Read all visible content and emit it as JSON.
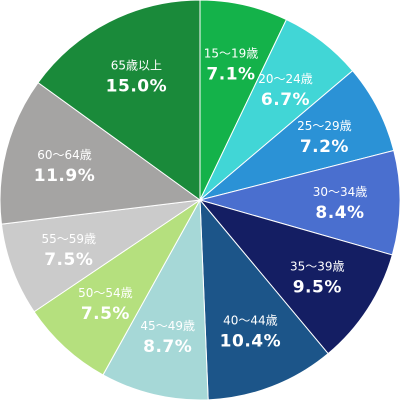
{
  "chart_data": {
    "type": "pie",
    "title": "",
    "start_angle_deg": 0,
    "direction": "clockwise",
    "categories": [
      "15〜19歳",
      "20〜24歳",
      "25〜29歳",
      "30〜34歳",
      "35〜39歳",
      "40〜44歳",
      "45〜49歳",
      "50〜54歳",
      "55〜59歳",
      "60〜64歳",
      "65歳以上"
    ],
    "values": [
      7.1,
      6.7,
      7.2,
      8.4,
      9.5,
      10.4,
      8.7,
      7.5,
      7.5,
      11.9,
      15.0
    ],
    "value_labels": [
      "7.1%",
      "6.7%",
      "7.2%",
      "8.4%",
      "9.5%",
      "10.4%",
      "8.7%",
      "7.5%",
      "7.5%",
      "11.9%",
      "15.0%"
    ],
    "colors": [
      "#14b24a",
      "#41d6d6",
      "#2b92d6",
      "#4a6fcf",
      "#141e63",
      "#1c5589",
      "#a6d8d7",
      "#b5e07e",
      "#cbcbcb",
      "#a5a4a3",
      "#1a8a3a"
    ],
    "label_colors": [
      "#ffffff",
      "#ffffff",
      "#ffffff",
      "#ffffff",
      "#ffffff",
      "#ffffff",
      "#ffffff",
      "#ffffff",
      "#ffffff",
      "#ffffff",
      "#ffffff"
    ]
  }
}
